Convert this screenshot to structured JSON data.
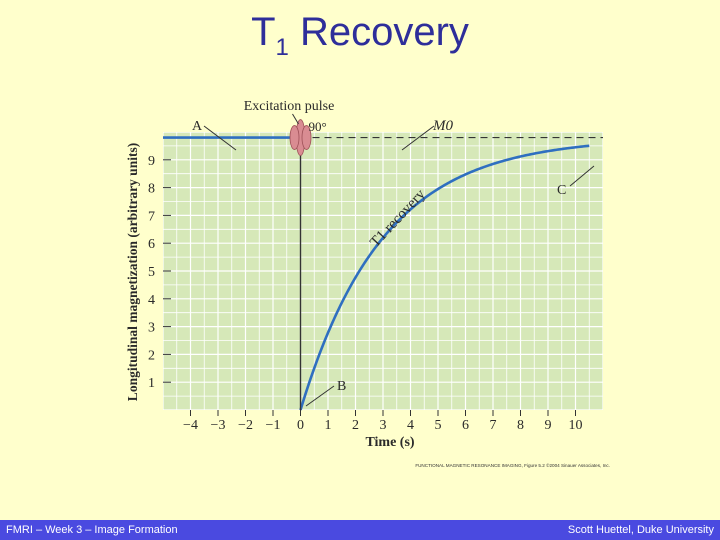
{
  "slide": {
    "title_main": "T",
    "title_sub": "1",
    "title_rest": " Recovery"
  },
  "footer": {
    "left": "FMRI – Week 3 – Image Formation",
    "right": "Scott Huettel, Duke University"
  },
  "figure": {
    "credit": "FUNCTIONAL MAGNETIC RESONANCE IMAGING, Figure 5.2 ©2004 Sinauer Associates, Inc."
  },
  "chart_data": {
    "type": "line",
    "title": "Excitation pulse",
    "xlabel": "Time (s)",
    "ylabel": "Longitudinal magnetization (arbitrary units)",
    "xlim": [
      -5,
      11
    ],
    "ylim": [
      0,
      10
    ],
    "x_ticks": [
      -4,
      -3,
      -2,
      -1,
      0,
      1,
      2,
      3,
      4,
      5,
      6,
      7,
      8,
      9,
      10
    ],
    "y_ticks": [
      1,
      2,
      3,
      4,
      5,
      6,
      7,
      8,
      9
    ],
    "grid": true,
    "pulse": {
      "x": 0,
      "label": "90°"
    },
    "reference": {
      "label": "M0",
      "y": 9.8
    },
    "series": [
      {
        "name": "T1 recovery",
        "color": "#2f6fc0",
        "pre_value": 9.8,
        "x_range": [
          0,
          10.5
        ],
        "M0": 9.8,
        "T1": 3.0
      }
    ],
    "annotations": [
      {
        "text": "A",
        "x": -3.7,
        "y": 9.8
      },
      {
        "text": "B",
        "x": 1.1,
        "y": 0.3
      },
      {
        "text": "C",
        "x": 9.3,
        "y": 9.1
      },
      {
        "text": "M0",
        "x": 4.0,
        "y": 9.8
      }
    ],
    "line_color": "#2f6fc0",
    "plot_bg": "#d6e8b8"
  }
}
